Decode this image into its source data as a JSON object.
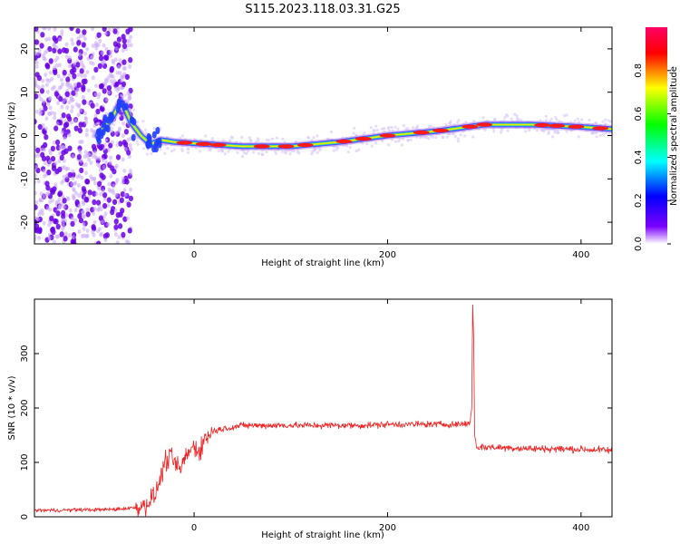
{
  "title": "S115.2023.118.03.31.G25",
  "chart_data": [
    {
      "type": "heatmap",
      "xlabel": "Height of straight line (km)",
      "ylabel": "Frequency (Hz)",
      "xlim": [
        -165,
        432
      ],
      "ylim": [
        -25,
        25
      ],
      "xticks": [
        0,
        200,
        400
      ],
      "yticks": [
        -20,
        -10,
        0,
        10,
        20
      ],
      "colorbar": {
        "label": "Normalized spectral amplitude",
        "range": [
          0,
          1
        ],
        "ticks": [
          0.0,
          0.2,
          0.4,
          0.6,
          0.8
        ],
        "colormap": [
          "#ffffff",
          "#7d00ff",
          "#0000ff",
          "#00ffff",
          "#00ff00",
          "#ffff00",
          "#ff0000",
          "#ff0066"
        ]
      },
      "ridge": {
        "x": [
          -100,
          -85,
          -75,
          -65,
          -55,
          -45,
          -35,
          -20,
          0,
          50,
          100,
          150,
          200,
          250,
          300,
          350,
          400,
          432
        ],
        "y": [
          0,
          4,
          8,
          3,
          0,
          -2,
          -1,
          -1.5,
          -1.8,
          -2.5,
          -2.5,
          -1.5,
          0,
          1,
          2.5,
          2.5,
          2,
          1.5
        ]
      },
      "grid": false
    },
    {
      "type": "line",
      "xlabel": "Height of straight line (km)",
      "ylabel": "SNR (10 * v/v)",
      "xlim": [
        -165,
        432
      ],
      "ylim": [
        0,
        400
      ],
      "xticks": [
        0,
        200,
        400
      ],
      "yticks": [
        0,
        100,
        200,
        300
      ],
      "series": [
        {
          "color": "#ee2222",
          "x": [
            -165,
            -140,
            -120,
            -100,
            -80,
            -60,
            -50,
            -40,
            -35,
            -30,
            -25,
            -20,
            -15,
            -10,
            -5,
            0,
            5,
            10,
            15,
            20,
            30,
            40,
            50,
            75,
            100,
            125,
            150,
            175,
            200,
            225,
            250,
            275,
            285,
            287,
            288,
            289,
            290,
            292,
            300,
            325,
            350,
            375,
            400,
            432
          ],
          "y": [
            12,
            12,
            13,
            13,
            14,
            17,
            22,
            40,
            70,
            100,
            110,
            100,
            85,
            105,
            120,
            130,
            120,
            140,
            150,
            158,
            162,
            165,
            168,
            168,
            168,
            168,
            168,
            168,
            170,
            170,
            170,
            170,
            172,
            200,
            390,
            330,
            150,
            128,
            128,
            127,
            125,
            125,
            124,
            122
          ]
        }
      ],
      "grid": false
    }
  ]
}
